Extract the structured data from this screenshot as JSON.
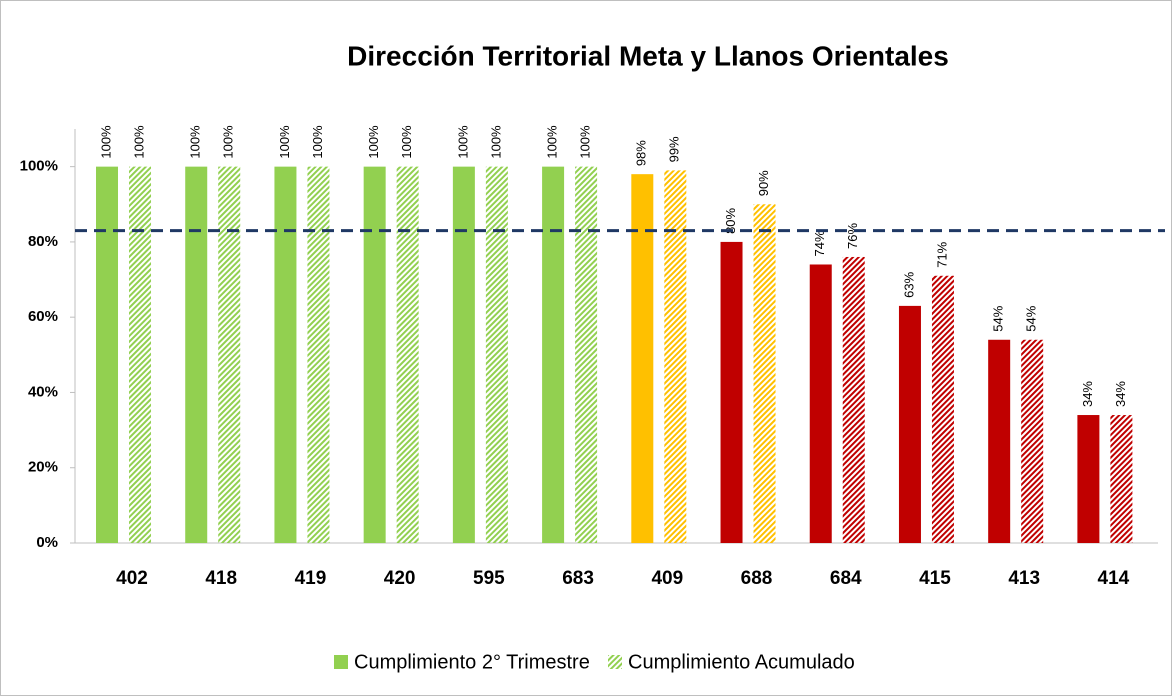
{
  "chart_data": {
    "type": "bar",
    "title": "Dirección Territorial Meta y Llanos Orientales",
    "categories": [
      "402",
      "418",
      "419",
      "420",
      "595",
      "683",
      "409",
      "688",
      "684",
      "415",
      "413",
      "414"
    ],
    "series": [
      {
        "name": "Cumplimiento 2° Trimestre",
        "color": "#92d050",
        "hatched": false,
        "colors": [
          "#92d050",
          "#92d050",
          "#92d050",
          "#92d050",
          "#92d050",
          "#92d050",
          "#ffc000",
          "#c00000",
          "#c00000",
          "#c00000",
          "#c00000",
          "#c00000"
        ],
        "values": [
          100,
          100,
          100,
          100,
          100,
          100,
          98,
          80,
          74,
          63,
          54,
          34
        ],
        "value_labels": [
          "100%",
          "100%",
          "100%",
          "100%",
          "100%",
          "100%",
          "98%",
          "80%",
          "74%",
          "63%",
          "54%",
          "34%"
        ]
      },
      {
        "name": "Cumplimiento Acumulado",
        "color": "#92d050",
        "hatched": true,
        "colors": [
          "#92d050",
          "#92d050",
          "#92d050",
          "#92d050",
          "#92d050",
          "#92d050",
          "#ffc000",
          "#ffc000",
          "#c00000",
          "#c00000",
          "#c00000",
          "#c00000"
        ],
        "values": [
          100,
          100,
          100,
          100,
          100,
          100,
          99,
          90,
          76,
          71,
          54,
          34
        ],
        "value_labels": [
          "100%",
          "100%",
          "100%",
          "100%",
          "100%",
          "100%",
          "99%",
          "90%",
          "76%",
          "71%",
          "54%",
          "34%"
        ]
      }
    ],
    "ylim": [
      0,
      110
    ],
    "yticks": [
      {
        "value": 0,
        "label": "0%"
      },
      {
        "value": 20,
        "label": "20%"
      },
      {
        "value": 40,
        "label": "40%"
      },
      {
        "value": 60,
        "label": "60%"
      },
      {
        "value": 80,
        "label": "80%"
      },
      {
        "value": 100,
        "label": "100%"
      }
    ],
    "target_line": {
      "value": 83,
      "color": "#1f3864"
    },
    "legend": "bottom"
  }
}
